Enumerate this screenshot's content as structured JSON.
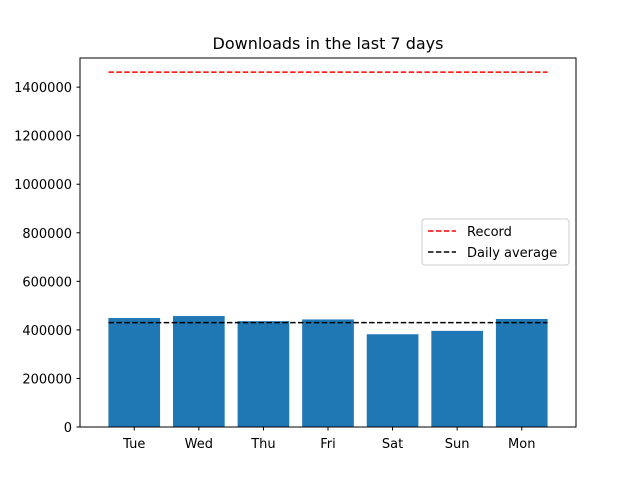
{
  "chart_data": {
    "type": "bar",
    "title": "Downloads in the last 7 days",
    "xlabel": "",
    "ylabel": "",
    "categories": [
      "Tue",
      "Wed",
      "Thu",
      "Fri",
      "Sat",
      "Sun",
      "Mon"
    ],
    "values": [
      449000,
      457000,
      436000,
      443000,
      382000,
      396000,
      445000
    ],
    "ylim": [
      0,
      1520000
    ],
    "yticks": [
      0,
      200000,
      400000,
      600000,
      800000,
      1000000,
      1200000,
      1400000
    ],
    "bar_color": "#1f77b4",
    "grid": false,
    "reference_lines": [
      {
        "name": "Record",
        "value": 1462000,
        "color": "#ff0000",
        "style": "dashed"
      },
      {
        "name": "Daily average",
        "value": 430000,
        "color": "#000000",
        "style": "dashed"
      }
    ],
    "legend": {
      "placement": "center-right",
      "entries": [
        "Record",
        "Daily average"
      ]
    }
  }
}
